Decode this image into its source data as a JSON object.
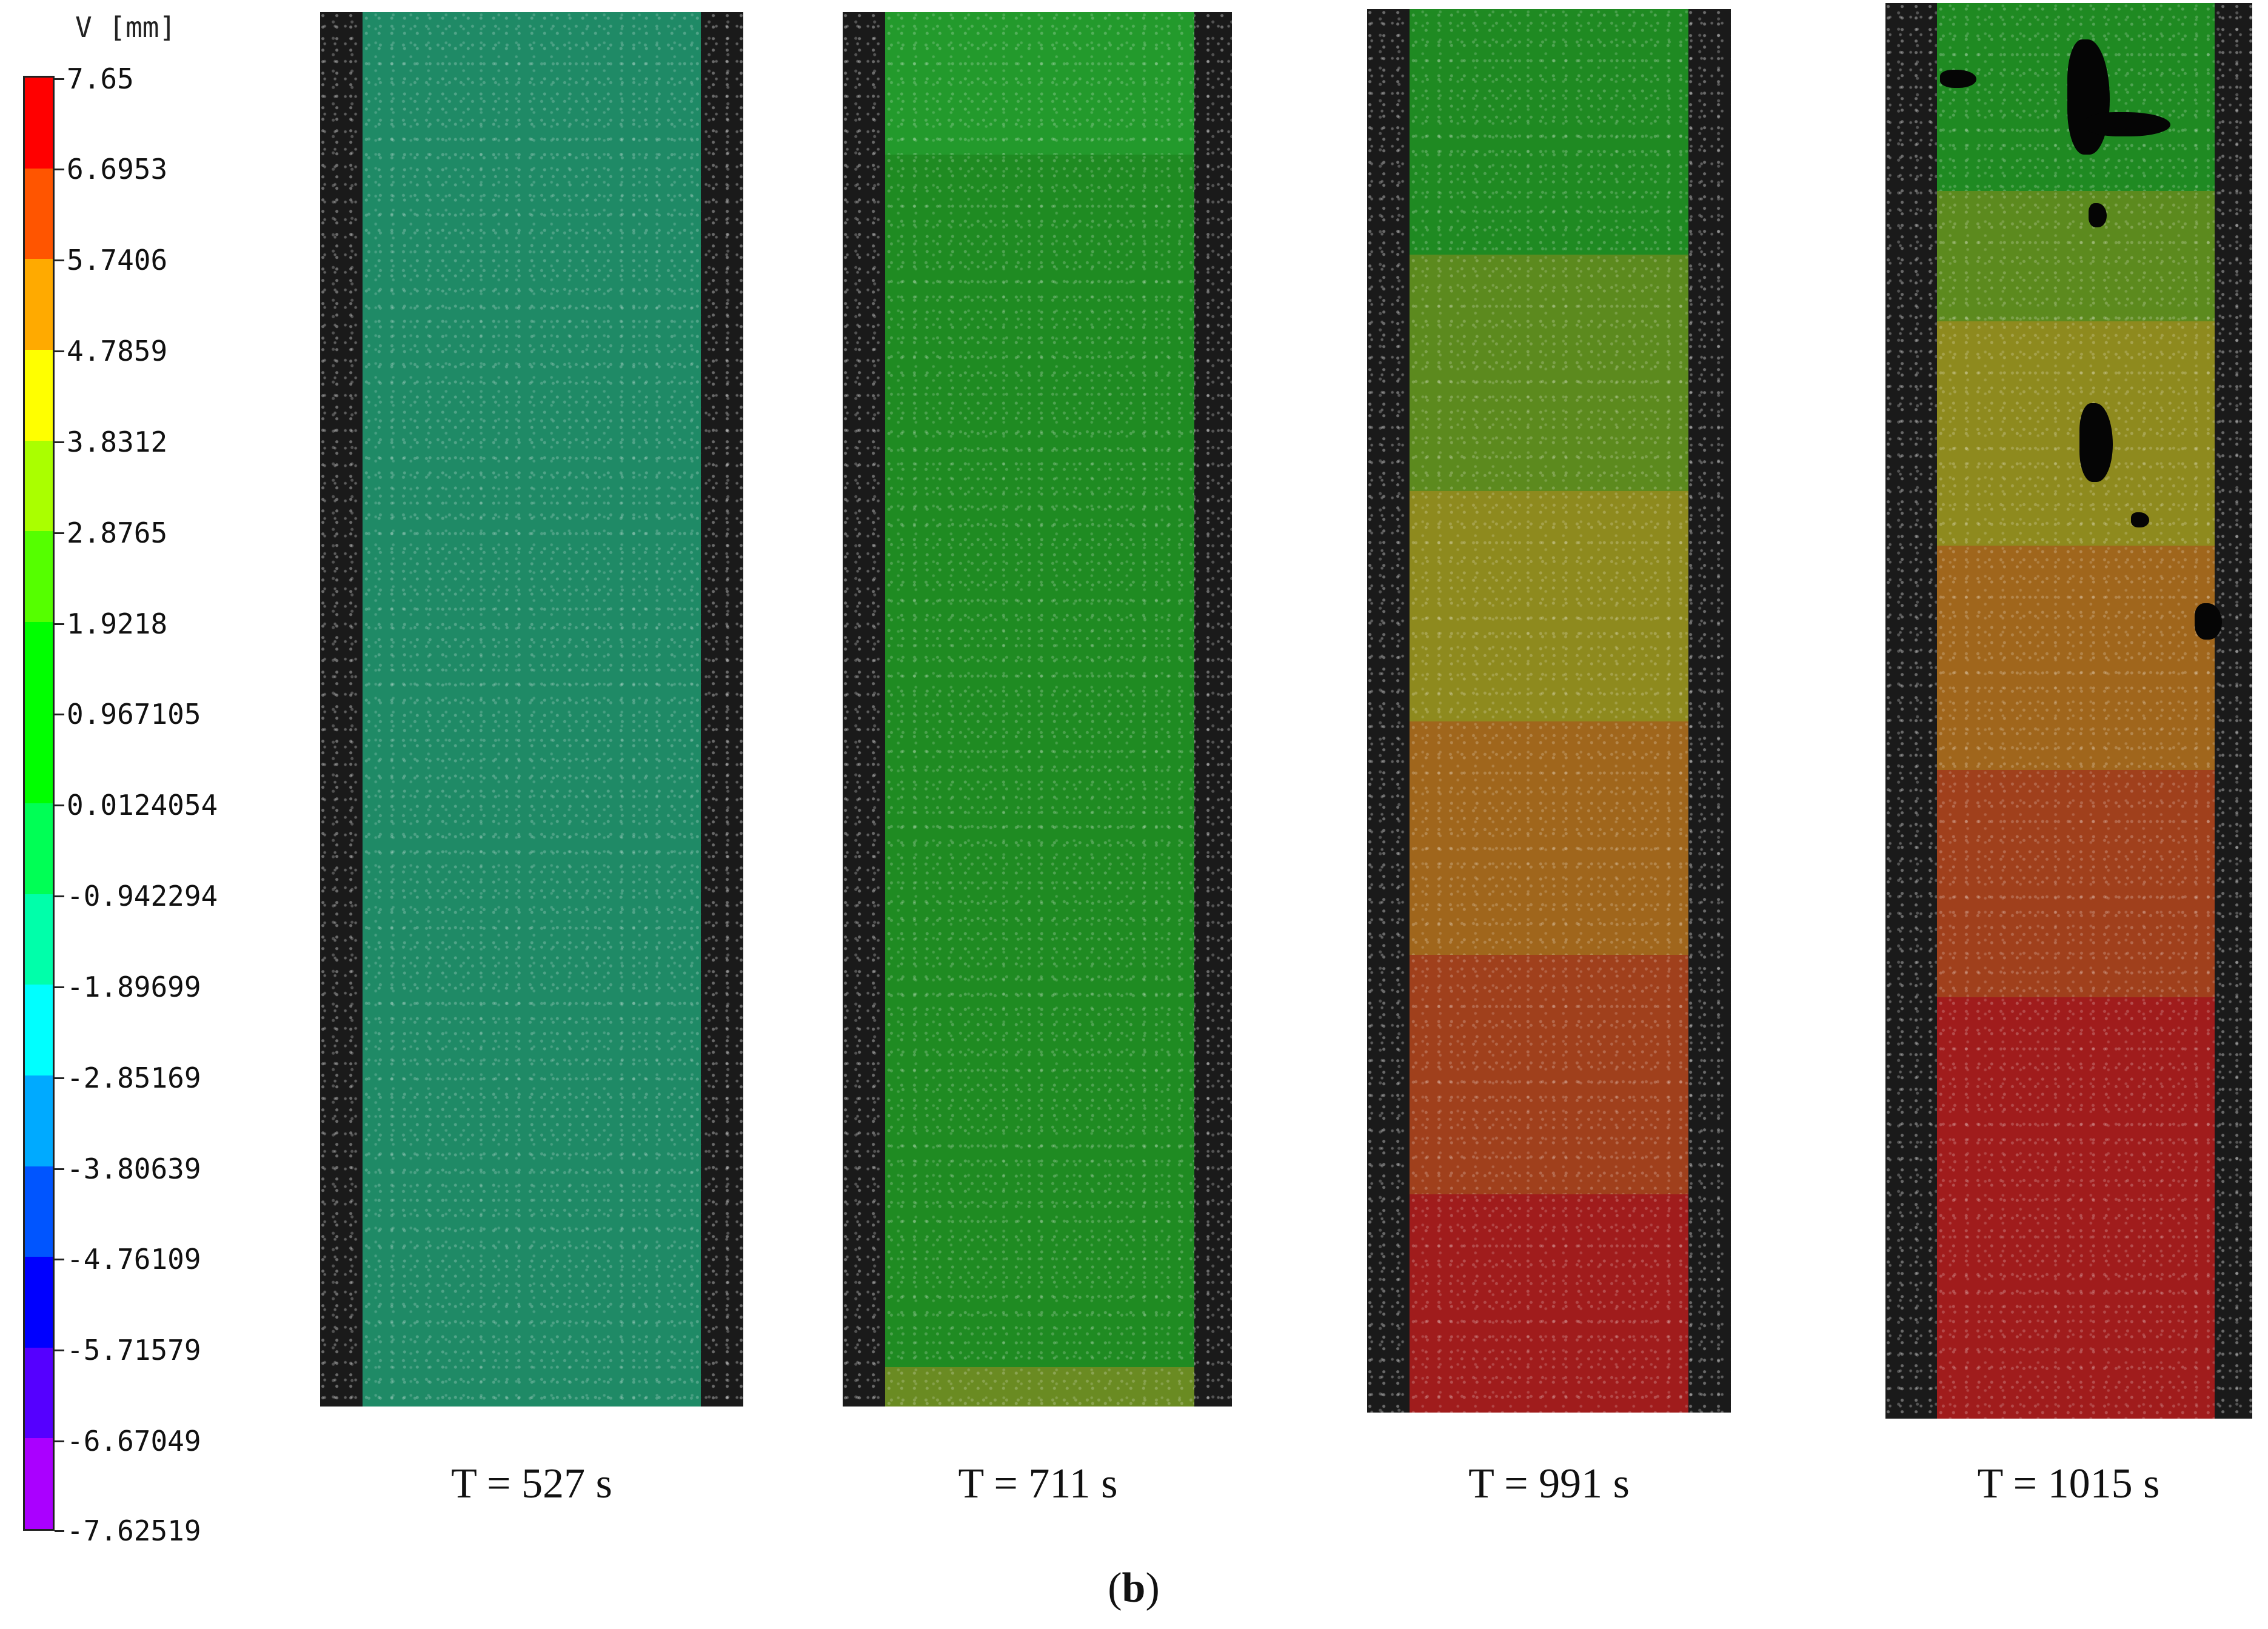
{
  "colorbar": {
    "title": "V [mm]",
    "labels": [
      "7.65",
      "6.6953",
      "5.7406",
      "4.7859",
      "3.8312",
      "2.8765",
      "1.9218",
      "0.967105",
      "0.0124054",
      "-0.942294",
      "-1.89699",
      "-2.85169",
      "-3.80639",
      "-4.76109",
      "-5.71579",
      "-6.67049",
      "-7.62519"
    ],
    "colors": [
      "#ff0000",
      "#ff5500",
      "#ffaa00",
      "#ffff00",
      "#aaff00",
      "#55ff00",
      "#00ff00",
      "#00ff00",
      "#00ff55",
      "#00ffaa",
      "#00ffff",
      "#00aaff",
      "#0055ff",
      "#0000ff",
      "#5500ff",
      "#aa00ff",
      "#ff00ff"
    ]
  },
  "specimens": [
    {
      "time_label": "T = 527 s"
    },
    {
      "time_label": "T = 711 s"
    },
    {
      "time_label": "T = 991 s"
    },
    {
      "time_label": "T = 1015 s"
    }
  ],
  "panel_label": "b"
}
